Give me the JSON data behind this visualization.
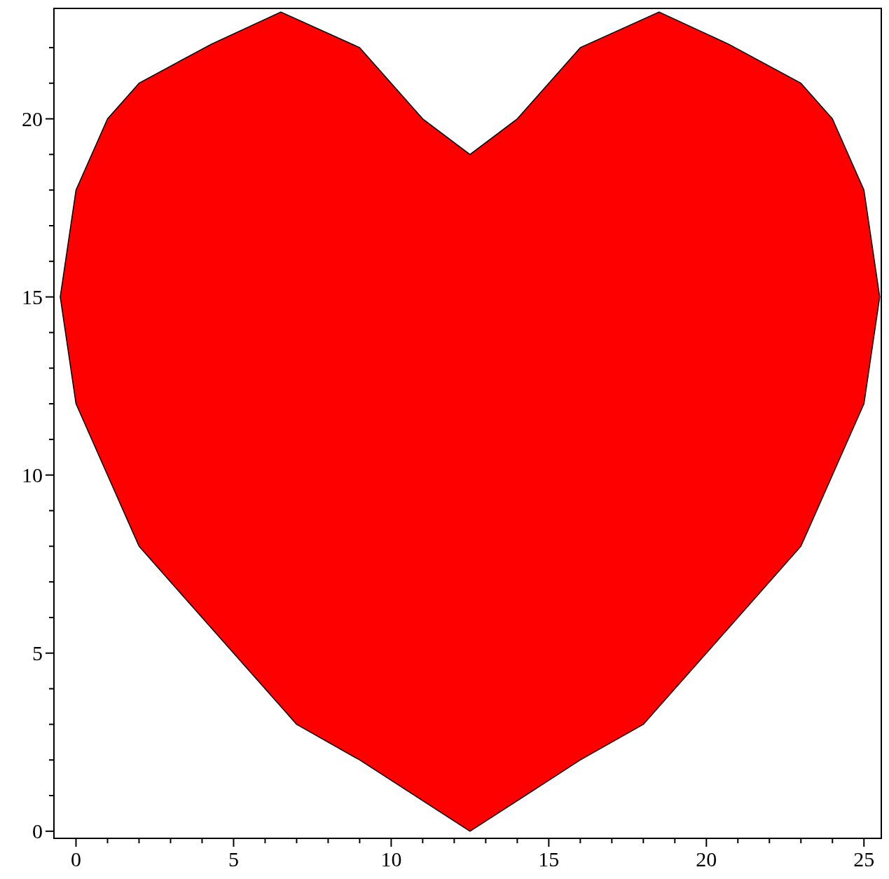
{
  "chart_data": {
    "type": "area",
    "x": [
      12.5,
      9,
      7,
      4,
      2,
      1,
      0,
      -0.5,
      0,
      1,
      2,
      4.3,
      6.5,
      9,
      11,
      12.5,
      14,
      16,
      18.5,
      20.7,
      23,
      24,
      25,
      25.5,
      25,
      24,
      23,
      21,
      18,
      16,
      12.5
    ],
    "series": [
      {
        "color": "#ff0000",
        "values": [
          0,
          2,
          3,
          6,
          8,
          10,
          12,
          15,
          18,
          20,
          21,
          22.1,
          23,
          22,
          20,
          19,
          20,
          22,
          23,
          22.1,
          21,
          20,
          18,
          15,
          12,
          10,
          8,
          6,
          3,
          2,
          0
        ]
      }
    ],
    "xlim": [
      -0.7,
      25.55
    ],
    "ylim": [
      -0.2,
      23.1
    ],
    "xticks": [
      0,
      {
        "value": 1,
        "label": null
      },
      {
        "value": 2,
        "label": null
      },
      {
        "value": 3,
        "label": null
      },
      {
        "value": 4,
        "label": null
      },
      5,
      {
        "value": 6,
        "label": null
      },
      {
        "value": 7,
        "label": null
      },
      {
        "value": 8,
        "label": null
      },
      {
        "value": 9,
        "label": null
      },
      10,
      {
        "value": 11,
        "label": null
      },
      {
        "value": 12,
        "label": null
      },
      {
        "value": 13,
        "label": null
      },
      {
        "value": 14,
        "label": null
      },
      15,
      {
        "value": 16,
        "label": null
      },
      {
        "value": 17,
        "label": null
      },
      {
        "value": 18,
        "label": null
      },
      {
        "value": 19,
        "label": null
      },
      20,
      {
        "value": 21,
        "label": null
      },
      {
        "value": 22,
        "label": null
      },
      {
        "value": 23,
        "label": null
      },
      {
        "value": 24,
        "label": null
      },
      25
    ],
    "yticks": [
      0,
      {
        "value": 1,
        "label": null
      },
      {
        "value": 2,
        "label": null
      },
      {
        "value": 3,
        "label": null
      },
      {
        "value": 4,
        "label": null
      },
      5,
      {
        "value": 6,
        "label": null
      },
      {
        "value": 7,
        "label": null
      },
      {
        "value": 8,
        "label": null
      },
      {
        "value": 9,
        "label": null
      },
      10,
      {
        "value": 11,
        "label": null
      },
      {
        "value": 12,
        "label": null
      },
      {
        "value": 13,
        "label": null
      },
      {
        "value": 14,
        "label": null
      },
      15,
      {
        "value": 16,
        "label": null
      },
      {
        "value": 17,
        "label": null
      },
      {
        "value": 18,
        "label": null
      },
      {
        "value": 19,
        "label": null
      },
      20,
      {
        "value": 21,
        "label": null
      },
      {
        "value": 22,
        "label": null
      }
    ],
    "tick_labels": "xy"
  }
}
